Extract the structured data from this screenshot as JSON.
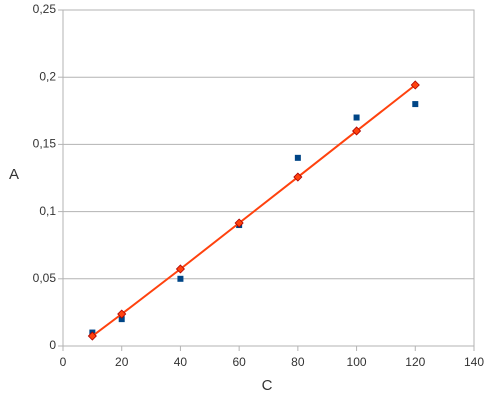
{
  "chart_data": {
    "type": "scatter",
    "x_label": "C",
    "y_label": "A",
    "x": [
      10,
      20,
      40,
      60,
      80,
      100,
      120
    ],
    "series": [
      {
        "color": "#004586",
        "marker": "square",
        "line": false,
        "values": [
          0.01,
          0.02,
          0.05,
          0.09,
          0.14,
          0.17,
          0.18
        ]
      },
      {
        "color": "#ff420e",
        "marker": "diamond",
        "line": true,
        "values": [
          0.0074,
          0.0238,
          0.0573,
          0.0915,
          0.1257,
          0.16,
          0.1942
        ]
      }
    ],
    "xlim": [
      0,
      140
    ],
    "xticks": [
      0,
      20,
      40,
      60,
      80,
      100,
      120,
      140
    ],
    "ylim": [
      0,
      0.25
    ],
    "yticks": [
      {
        "value": 0,
        "label": "0"
      },
      {
        "value": 0.05,
        "label": "0,05"
      },
      {
        "value": 0.1,
        "label": "0,1"
      },
      {
        "value": 0.15,
        "label": "0,15"
      },
      {
        "value": 0.2,
        "label": "0,2"
      },
      {
        "value": 0.25,
        "label": "0,25"
      }
    ],
    "grid": true
  }
}
